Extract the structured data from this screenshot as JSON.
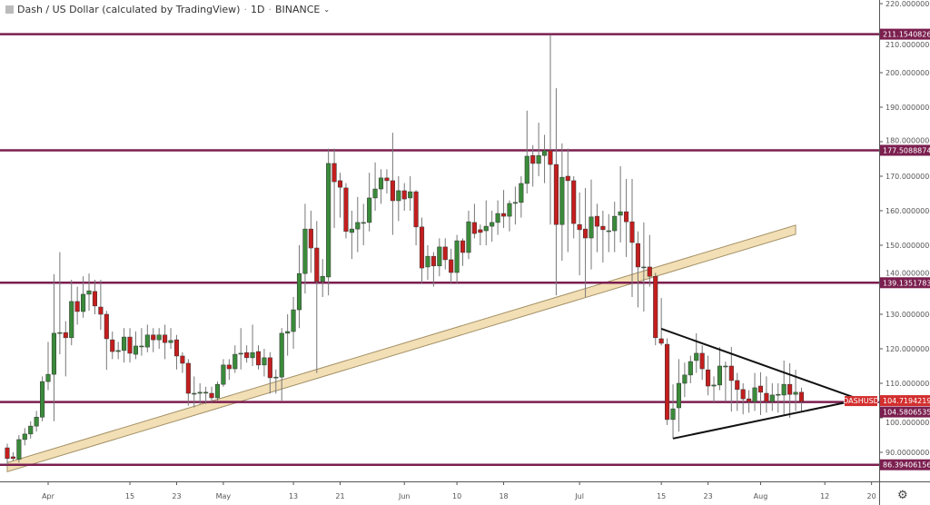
{
  "header": {
    "symbol_title": "Dash / US Dollar (calculated by TradingView)",
    "interval": "1D",
    "exchange": "BINANCE",
    "separator": "·"
  },
  "symbol_label": "DASHUSD",
  "colors": {
    "up": "#3a8a3a",
    "down": "#c41e1e",
    "level_line": "#7b1f4f",
    "trend_band_fill": "#f2dcae",
    "trend_band_edge": "#9a8657",
    "price_label": "#d32f2f",
    "triangle": "#111111"
  },
  "chart_data": {
    "type": "candlestick",
    "interval": "1D",
    "first_candle_date": "2019-03-25",
    "ylim": [
      84,
      221
    ],
    "y_ticks": [
      "220.00000000",
      "210.00000000",
      "200.00000000",
      "190.00000000",
      "180.00000000",
      "170.00000000",
      "160.00000000",
      "150.00000000",
      "140.00000000",
      "130.00000000",
      "120.00000000",
      "110.00000000",
      "100.00000000",
      "90.00000000"
    ],
    "x_ticks": [
      {
        "label": "Apr",
        "date": "2019-04-01"
      },
      {
        "label": "15",
        "date": "2019-04-15"
      },
      {
        "label": "23",
        "date": "2019-04-23"
      },
      {
        "label": "May",
        "date": "2019-05-01"
      },
      {
        "label": "13",
        "date": "2019-05-13"
      },
      {
        "label": "21",
        "date": "2019-05-21"
      },
      {
        "label": "Jun",
        "date": "2019-06-01"
      },
      {
        "label": "10",
        "date": "2019-06-10"
      },
      {
        "label": "18",
        "date": "2019-06-18"
      },
      {
        "label": "Jul",
        "date": "2019-07-01"
      },
      {
        "label": "15",
        "date": "2019-07-15"
      },
      {
        "label": "23",
        "date": "2019-07-23"
      },
      {
        "label": "Aug",
        "date": "2019-08-01"
      },
      {
        "label": "12",
        "date": "2019-08-12"
      },
      {
        "label": "20",
        "date": "2019-08-20"
      }
    ],
    "candles_ohlc": [
      [
        91.3,
        92.5,
        86.5,
        88.2
      ],
      [
        88.7,
        90,
        87.5,
        88.2
      ],
      [
        88,
        95,
        87,
        93.7
      ],
      [
        93.7,
        97,
        92,
        95.3
      ],
      [
        95.3,
        99,
        94,
        97.6
      ],
      [
        97.6,
        102,
        96,
        100.2
      ],
      [
        100.2,
        112,
        99,
        110.5
      ],
      [
        110.5,
        122,
        108,
        112.6
      ],
      [
        112.6,
        141.6,
        99,
        124.5
      ],
      [
        124.5,
        148,
        118.4,
        124.7
      ],
      [
        124.7,
        128,
        112,
        123.2
      ],
      [
        123.2,
        140,
        121,
        133.7
      ],
      [
        133.7,
        138,
        127,
        130.8
      ],
      [
        130.8,
        141,
        129,
        135.8
      ],
      [
        135.8,
        141.8,
        131,
        136.8
      ],
      [
        136.6,
        140,
        130,
        132.4
      ],
      [
        132.1,
        140,
        125.5,
        130
      ],
      [
        130,
        131,
        113.9,
        122.9
      ],
      [
        122.6,
        125,
        117,
        119.2
      ],
      [
        119.2,
        122,
        117,
        119.5
      ],
      [
        119.5,
        126,
        116,
        123.4
      ],
      [
        123.4,
        126,
        116,
        118.7
      ],
      [
        118.4,
        125,
        117,
        120.8
      ],
      [
        120.8,
        126,
        118,
        120.8
      ],
      [
        120.5,
        127,
        119,
        124
      ],
      [
        124,
        126,
        119,
        122.6
      ],
      [
        122.6,
        126,
        120,
        124
      ],
      [
        124,
        127,
        117,
        121.8
      ],
      [
        121.8,
        126,
        120,
        122.4
      ],
      [
        122.6,
        124,
        114,
        117.9
      ],
      [
        117.9,
        119,
        113,
        115.8
      ],
      [
        115.8,
        117,
        103.5,
        107.1
      ],
      [
        107.1,
        112,
        103,
        107.1
      ],
      [
        107.1,
        110,
        104,
        107.4
      ],
      [
        107.4,
        109,
        104,
        107.4
      ],
      [
        107.1,
        109,
        104.5,
        105.8
      ],
      [
        105.8,
        110.5,
        105,
        109.7
      ],
      [
        109.7,
        117,
        109,
        115.3
      ],
      [
        115.3,
        117,
        111,
        114.2
      ],
      [
        114.2,
        121,
        113,
        118.4
      ],
      [
        118.7,
        126,
        114,
        118.7
      ],
      [
        118.9,
        121,
        116,
        117.4
      ],
      [
        117.4,
        127,
        115,
        118.9
      ],
      [
        119.2,
        121,
        114,
        115.3
      ],
      [
        115.3,
        120,
        112,
        117.4
      ],
      [
        117.4,
        119,
        107,
        111.6
      ],
      [
        111.8,
        114,
        107,
        111.8
      ],
      [
        111.8,
        126,
        105,
        124.5
      ],
      [
        124.5,
        130,
        118,
        125
      ],
      [
        125,
        135,
        120,
        131.3
      ],
      [
        131.3,
        150,
        126,
        141.8
      ],
      [
        141.8,
        162,
        136,
        154.7
      ],
      [
        154.7,
        160,
        142,
        149.2
      ],
      [
        149.2,
        157,
        113,
        139.5
      ],
      [
        139.5,
        146,
        135,
        141
      ],
      [
        140.8,
        178,
        135.5,
        173.7
      ],
      [
        173.7,
        178,
        155,
        168.4
      ],
      [
        168.7,
        171,
        158,
        166.8
      ],
      [
        166.6,
        168,
        152,
        154
      ],
      [
        153.7,
        160,
        146,
        154.7
      ],
      [
        154.7,
        164,
        148,
        156.6
      ],
      [
        156.6,
        162,
        150,
        156.6
      ],
      [
        156.6,
        171,
        154,
        163.7
      ],
      [
        163.7,
        174,
        160,
        166.3
      ],
      [
        166.3,
        172,
        162,
        169.5
      ],
      [
        169.5,
        172,
        165,
        168.7
      ],
      [
        168.7,
        182.6,
        153,
        162.9
      ],
      [
        162.9,
        170,
        157,
        165.8
      ],
      [
        165.8,
        168,
        160,
        163.4
      ],
      [
        163.7,
        170,
        160,
        165.5
      ],
      [
        165.5,
        166,
        150,
        155.3
      ],
      [
        155.3,
        158,
        139,
        143.4
      ],
      [
        143.7,
        150,
        140,
        146.8
      ],
      [
        146.8,
        148,
        138,
        144
      ],
      [
        144,
        152,
        141,
        149.5
      ],
      [
        149.5,
        152,
        143,
        145.8
      ],
      [
        145.8,
        149,
        139,
        142.1
      ],
      [
        142.1,
        153,
        139,
        151.3
      ],
      [
        151.3,
        152,
        144,
        147.9
      ],
      [
        147.9,
        160,
        146,
        156.8
      ],
      [
        156.6,
        162,
        152,
        153.4
      ],
      [
        154.5,
        156,
        150,
        153.7
      ],
      [
        154.2,
        163,
        150,
        155.5
      ],
      [
        155.5,
        160,
        151,
        156.6
      ],
      [
        156.6,
        163,
        153,
        159.2
      ],
      [
        159.2,
        166,
        155,
        158.4
      ],
      [
        158.4,
        163,
        154,
        162.1
      ],
      [
        162.4,
        167,
        156,
        162.4
      ],
      [
        162.4,
        170,
        158,
        167.9
      ],
      [
        167.9,
        189,
        165,
        175.8
      ],
      [
        176,
        179,
        167,
        173.7
      ],
      [
        173.7,
        185.5,
        170,
        176
      ],
      [
        176,
        182,
        168,
        177.4
      ],
      [
        177.4,
        211,
        156,
        173.4
      ],
      [
        173.4,
        195.5,
        135.5,
        156
      ],
      [
        156,
        179.5,
        145.5,
        169.7
      ],
      [
        170,
        178,
        148,
        168.7
      ],
      [
        168.7,
        170,
        152,
        156.3
      ],
      [
        156,
        165.3,
        141.3,
        154.5
      ],
      [
        154.7,
        166.6,
        135,
        152.1
      ],
      [
        152.1,
        169,
        143,
        158.2
      ],
      [
        158.4,
        162,
        148,
        155.5
      ],
      [
        155.5,
        160,
        145,
        154.5
      ],
      [
        154.2,
        159,
        148,
        154.2
      ],
      [
        154.2,
        162.6,
        148,
        158.4
      ],
      [
        158.7,
        172.9,
        150.8,
        159.7
      ],
      [
        159.7,
        169.2,
        146.6,
        156.8
      ],
      [
        156.8,
        169.2,
        135,
        150.8
      ],
      [
        150.5,
        154,
        132,
        143.7
      ],
      [
        143.7,
        156.6,
        130.8,
        143.7
      ],
      [
        143.7,
        153,
        138,
        141
      ],
      [
        141,
        142,
        121,
        123.2
      ],
      [
        122.9,
        134.7,
        121,
        121.6
      ],
      [
        121.3,
        123,
        97.9,
        99.5
      ],
      [
        99.5,
        109.7,
        94,
        102.6
      ],
      [
        102.9,
        117,
        96,
        110
      ],
      [
        110,
        116,
        106,
        112.4
      ],
      [
        112.4,
        118,
        110,
        116.3
      ],
      [
        116.6,
        124.5,
        113,
        118.7
      ],
      [
        118.7,
        121,
        111,
        114.2
      ],
      [
        113.9,
        118,
        106.5,
        109.2
      ],
      [
        109.2,
        112,
        104.5,
        109.5
      ],
      [
        109.5,
        120.5,
        108,
        115
      ],
      [
        115,
        116.3,
        104.7,
        115
      ],
      [
        115,
        120.5,
        101.8,
        110.8
      ],
      [
        110.8,
        113,
        102,
        108.2
      ],
      [
        108.2,
        110,
        101,
        105.5
      ],
      [
        105.5,
        108,
        101.5,
        104.7
      ],
      [
        104.7,
        113,
        102,
        108.7
      ],
      [
        109.2,
        113.2,
        100.8,
        107.4
      ],
      [
        107.1,
        112,
        101.5,
        104.7
      ],
      [
        104.7,
        110,
        102,
        106.6
      ],
      [
        106.8,
        110,
        101.5,
        106.8
      ],
      [
        106.6,
        116.6,
        100.5,
        109.7
      ],
      [
        109.7,
        115.8,
        100,
        106.8
      ],
      [
        106.8,
        113.9,
        102,
        107.4
      ],
      [
        107.4,
        108.7,
        102,
        104.7
      ]
    ],
    "horizontal_levels": [
      {
        "label": "211.15408269",
        "value": 211.15408269
      },
      {
        "label": "177.50888749",
        "value": 177.50888749
      },
      {
        "label": "139.13517836",
        "value": 139.13517836
      },
      {
        "label": "104.58065356",
        "value": 104.58065356
      },
      {
        "label": "86.39406156",
        "value": 86.39406156
      }
    ],
    "last_price": {
      "label": "104.71942195",
      "value": 104.71942195
    },
    "trend_band": {
      "from": {
        "date": "2019-03-25",
        "price": 85.7
      },
      "to": {
        "date": "2019-08-07",
        "price": 154.5
      }
    },
    "triangle": {
      "upper": {
        "from": {
          "date": "2019-07-15",
          "price": 125.8
        },
        "to": {
          "date": "2019-08-18",
          "price": 105.3
        }
      },
      "lower": {
        "from": {
          "date": "2019-07-17",
          "price": 94.0
        },
        "to": {
          "date": "2019-08-18",
          "price": 105.3
        }
      }
    }
  }
}
